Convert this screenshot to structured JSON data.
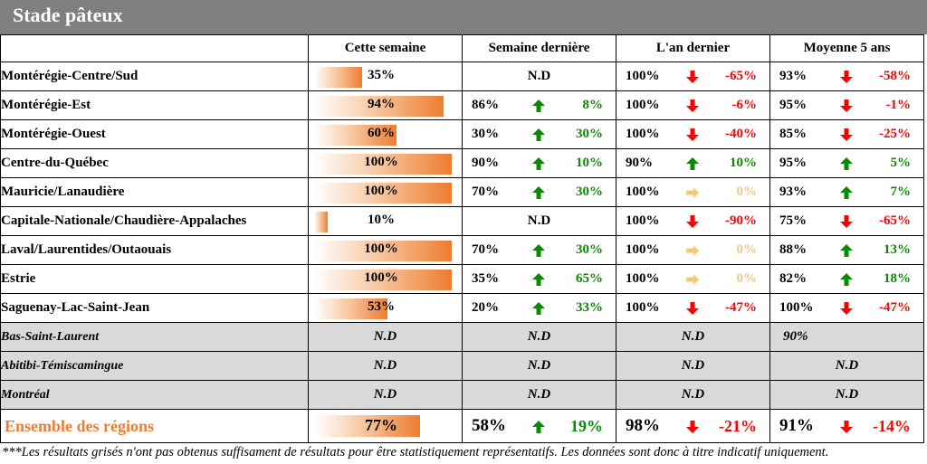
{
  "title": "Stade pâteux",
  "columns": [
    "Cette semaine",
    "Semaine dernière",
    "L'an dernier",
    "Moyenne 5 ans"
  ],
  "colors": {
    "bar": "#ed7d31",
    "up": "#0a8a00",
    "down": "#ff0000",
    "flat": "#f4c77c",
    "gray_row": "#d9d9d9",
    "header": "#7f7f7f"
  },
  "chart_data": {
    "type": "table",
    "rows": [
      {
        "region": "Montérégie-Centre/Sud",
        "this_week": 35,
        "this_week_label": "35%",
        "last_week": {
          "nd": true,
          "text": "N.D"
        },
        "last_year": {
          "value": "100%",
          "dir": "down",
          "diff": "-65%"
        },
        "avg5": {
          "value": "93%",
          "dir": "down",
          "diff": "-58%"
        }
      },
      {
        "region": "Montérégie-Est",
        "this_week": 94,
        "this_week_label": "94%",
        "last_week": {
          "value": "86%",
          "dir": "up",
          "diff": "8%"
        },
        "last_year": {
          "value": "100%",
          "dir": "down",
          "diff": "-6%"
        },
        "avg5": {
          "value": "95%",
          "dir": "down",
          "diff": "-1%"
        }
      },
      {
        "region": "Montérégie-Ouest",
        "this_week": 60,
        "this_week_label": "60%",
        "last_week": {
          "value": "30%",
          "dir": "up",
          "diff": "30%"
        },
        "last_year": {
          "value": "100%",
          "dir": "down",
          "diff": "-40%"
        },
        "avg5": {
          "value": "85%",
          "dir": "down",
          "diff": "-25%"
        }
      },
      {
        "region": "Centre-du-Québec",
        "this_week": 100,
        "this_week_label": "100%",
        "last_week": {
          "value": "90%",
          "dir": "up",
          "diff": "10%"
        },
        "last_year": {
          "value": "90%",
          "dir": "up",
          "diff": "10%"
        },
        "avg5": {
          "value": "95%",
          "dir": "up",
          "diff": "5%"
        }
      },
      {
        "region": "Mauricie/Lanaudière",
        "this_week": 100,
        "this_week_label": "100%",
        "last_week": {
          "value": "70%",
          "dir": "up",
          "diff": "30%"
        },
        "last_year": {
          "value": "100%",
          "dir": "flat",
          "diff": "0%"
        },
        "avg5": {
          "value": "93%",
          "dir": "up",
          "diff": "7%"
        }
      },
      {
        "region": "Capitale-Nationale/Chaudière-Appalaches",
        "this_week": 10,
        "this_week_label": "10%",
        "last_week": {
          "nd": true,
          "text": "N.D"
        },
        "last_year": {
          "value": "100%",
          "dir": "down",
          "diff": "-90%"
        },
        "avg5": {
          "value": "75%",
          "dir": "down",
          "diff": "-65%"
        }
      },
      {
        "region": "Laval/Laurentides/Outaouais",
        "this_week": 100,
        "this_week_label": "100%",
        "last_week": {
          "value": "70%",
          "dir": "up",
          "diff": "30%"
        },
        "last_year": {
          "value": "100%",
          "dir": "flat",
          "diff": "0%"
        },
        "avg5": {
          "value": "88%",
          "dir": "up",
          "diff": "13%"
        }
      },
      {
        "region": "Estrie",
        "this_week": 100,
        "this_week_label": "100%",
        "last_week": {
          "value": "35%",
          "dir": "up",
          "diff": "65%"
        },
        "last_year": {
          "value": "100%",
          "dir": "flat",
          "diff": "0%"
        },
        "avg5": {
          "value": "82%",
          "dir": "up",
          "diff": "18%"
        }
      },
      {
        "region": "Saguenay-Lac-Saint-Jean",
        "this_week": 53,
        "this_week_label": "53%",
        "last_week": {
          "value": "20%",
          "dir": "up",
          "diff": "33%"
        },
        "last_year": {
          "value": "100%",
          "dir": "down",
          "diff": "-47%"
        },
        "avg5": {
          "value": "100%",
          "dir": "down",
          "diff": "-47%"
        }
      }
    ],
    "gray_rows": [
      {
        "region": "Bas-Saint-Laurent",
        "this_week": "N.D",
        "last_week": "N.D",
        "last_year": "N.D",
        "avg5": "90%"
      },
      {
        "region": "Abitibi-Témiscamingue",
        "this_week": "N.D",
        "last_week": "N.D",
        "last_year": "N.D",
        "avg5": "N.D"
      },
      {
        "region": "Montréal",
        "this_week": "N.D",
        "last_week": "N.D",
        "last_year": "N.D",
        "avg5": "N.D"
      }
    ],
    "total": {
      "region": "Ensemble des régions",
      "this_week": 77,
      "this_week_label": "77%",
      "last_week": {
        "value": "58%",
        "dir": "up",
        "diff": "19%"
      },
      "last_year": {
        "value": "98%",
        "dir": "down",
        "diff": "-21%"
      },
      "avg5": {
        "value": "91%",
        "dir": "down",
        "diff": "-14%"
      }
    }
  },
  "footnote": "***Les résultats grisés n'ont pas obtenus suffisament de résultats pour être statistiquement représentatifs. Les données sont donc à titre indicatif uniquement."
}
